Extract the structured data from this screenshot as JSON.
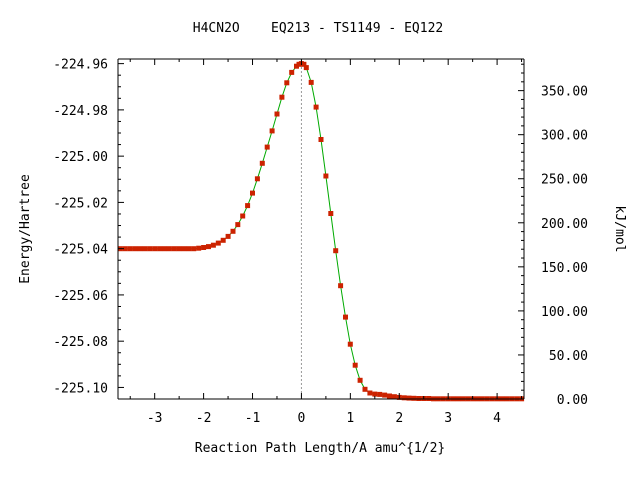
{
  "chart_data": {
    "type": "line",
    "title": "H4CN2O    EQ213 - TS1149 - EQ122",
    "xlabel": "Reaction Path Length/A amu^{1/2}",
    "ylabel": "Energy/Hartree",
    "y2label": "kJ/mol",
    "xlim": [
      -3.75,
      4.55
    ],
    "ylim": [
      -225.105,
      -224.958
    ],
    "y2lim": [
      0,
      385.9
    ],
    "x_ticks": [
      -3,
      -2,
      -1,
      0,
      1,
      2,
      3,
      4
    ],
    "x_tick_labels": [
      "-3",
      "-2",
      "-1",
      "0",
      "1",
      "2",
      "3",
      "4"
    ],
    "y_ticks": [
      -224.96,
      -224.98,
      -225.0,
      -225.02,
      -225.04,
      -225.06,
      -225.08,
      -225.1
    ],
    "y_tick_labels": [
      "-224.96",
      "-224.98",
      "-225.00",
      "-225.02",
      "-225.04",
      "-225.06",
      "-225.08",
      "-225.10"
    ],
    "y2_ticks": [
      0,
      50,
      100,
      150,
      200,
      250,
      300,
      350
    ],
    "y2_tick_labels": [
      "0.00",
      "50.00",
      "100.00",
      "150.00",
      "200.00",
      "250.00",
      "300.00",
      "350.00"
    ],
    "ts_line_x": 0,
    "grid": false,
    "colors": {
      "line": "#00aa00",
      "marker": "#cc2200",
      "ts_line": "#999999",
      "axis": "#000000"
    },
    "series": [
      {
        "x": [
          -3.7,
          -3.6,
          -3.5,
          -3.4,
          -3.3,
          -3.2,
          -3.1,
          -3.0,
          -2.9,
          -2.8,
          -2.7,
          -2.6,
          -2.5,
          -2.4,
          -2.3,
          -2.2,
          -2.1,
          -2.0,
          -1.9,
          -1.8,
          -1.7,
          -1.6,
          -1.5,
          -1.4,
          -1.3,
          -1.2,
          -1.1,
          -1.0,
          -0.9,
          -0.8,
          -0.7,
          -0.6,
          -0.5,
          -0.4,
          -0.3,
          -0.2,
          -0.1,
          -0.05,
          0.0,
          0.05,
          0.1,
          0.2,
          0.3,
          0.4,
          0.5,
          0.6,
          0.7,
          0.8,
          0.9,
          1.0,
          1.1,
          1.2,
          1.3,
          1.4,
          1.5,
          1.6,
          1.7,
          1.8,
          1.9,
          2.0,
          2.1,
          2.2,
          2.3,
          2.4,
          2.5,
          2.6,
          2.7,
          2.8,
          2.9,
          3.0,
          3.1,
          3.2,
          3.3,
          3.4,
          3.5,
          3.6,
          3.7,
          3.8,
          3.9,
          4.0,
          4.1,
          4.2,
          4.3,
          4.4,
          4.5
        ],
        "y": [
          -225.04,
          -225.04,
          -225.04,
          -225.04,
          -225.04,
          -225.04,
          -225.04,
          -225.04,
          -225.04,
          -225.04,
          -225.04,
          -225.04,
          -225.04,
          -225.04,
          -225.04,
          -225.04,
          -225.0398,
          -225.0395,
          -225.0391,
          -225.0385,
          -225.0376,
          -225.0364,
          -225.0347,
          -225.0325,
          -225.0296,
          -225.0259,
          -225.0214,
          -225.016,
          -225.0098,
          -225.0031,
          -224.9961,
          -224.9891,
          -224.9818,
          -224.9745,
          -224.9683,
          -224.9638,
          -224.9611,
          -224.9603,
          -224.96,
          -224.9603,
          -224.9617,
          -224.9681,
          -224.9788,
          -224.9928,
          -225.0086,
          -225.0248,
          -225.0409,
          -225.056,
          -225.0696,
          -225.0813,
          -225.0904,
          -225.0969,
          -225.1008,
          -225.1024,
          -225.1029,
          -225.103,
          -225.1033,
          -225.1037,
          -225.104,
          -225.1043,
          -225.1045,
          -225.1046,
          -225.1047,
          -225.1048,
          -225.1048,
          -225.1048,
          -225.1049,
          -225.1049,
          -225.1049,
          -225.1049,
          -225.1049,
          -225.1049,
          -225.1049,
          -225.1049,
          -225.1049,
          -225.1049,
          -225.1049,
          -225.1049,
          -225.1049,
          -225.1049,
          -225.1049,
          -225.1049,
          -225.1049,
          -225.1049,
          -225.1049
        ]
      }
    ]
  }
}
